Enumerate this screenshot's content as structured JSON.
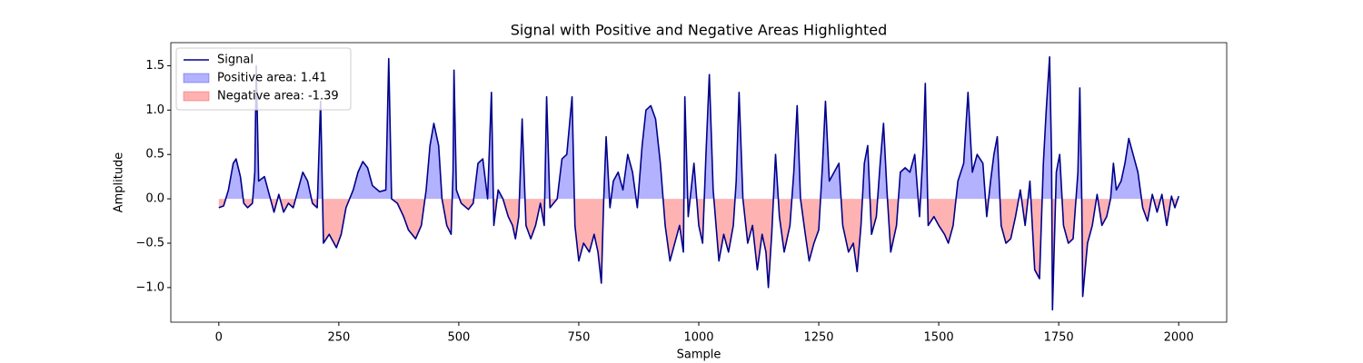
{
  "chart_data": {
    "type": "line",
    "title": "Signal with Positive and Negative Areas Highlighted",
    "x_label": "Sample",
    "y_label": "Amplitude",
    "x": [
      0,
      10,
      20,
      30,
      36,
      45,
      52,
      60,
      70,
      75,
      78,
      83,
      95,
      105,
      115,
      125,
      135,
      145,
      155,
      165,
      175,
      185,
      195,
      205,
      212,
      218,
      230,
      245,
      255,
      265,
      280,
      290,
      300,
      310,
      320,
      335,
      348,
      354,
      360,
      372,
      385,
      395,
      410,
      422,
      432,
      440,
      448,
      458,
      465,
      475,
      484,
      488,
      490,
      495,
      505,
      520,
      530,
      540,
      550,
      560,
      568,
      573,
      582,
      592,
      603,
      612,
      618,
      625,
      632,
      640,
      650,
      660,
      670,
      678,
      683,
      690,
      705,
      715,
      725,
      736,
      742,
      750,
      760,
      772,
      782,
      790,
      797,
      802,
      807,
      815,
      822,
      832,
      842,
      852,
      862,
      872,
      882,
      890,
      900,
      910,
      920,
      930,
      940,
      950,
      960,
      968,
      971,
      978,
      990,
      1000,
      1008,
      1015,
      1022,
      1030,
      1042,
      1052,
      1062,
      1072,
      1078,
      1084,
      1092,
      1102,
      1112,
      1122,
      1132,
      1140,
      1145,
      1152,
      1160,
      1168,
      1178,
      1190,
      1198,
      1205,
      1212,
      1222,
      1230,
      1240,
      1250,
      1258,
      1264,
      1272,
      1282,
      1292,
      1300,
      1312,
      1322,
      1330,
      1338,
      1345,
      1352,
      1360,
      1370,
      1378,
      1385,
      1392,
      1400,
      1412,
      1420,
      1430,
      1440,
      1450,
      1460,
      1468,
      1472,
      1478,
      1490,
      1500,
      1512,
      1520,
      1530,
      1540,
      1552,
      1561,
      1570,
      1580,
      1592,
      1600,
      1608,
      1615,
      1622,
      1630,
      1640,
      1650,
      1660,
      1670,
      1680,
      1690,
      1700,
      1710,
      1718,
      1724,
      1731,
      1735,
      1737,
      1745,
      1752,
      1760,
      1770,
      1780,
      1790,
      1794,
      1798,
      1800,
      1810,
      1820,
      1830,
      1840,
      1850,
      1858,
      1864,
      1870,
      1880,
      1888,
      1896,
      1905,
      1915,
      1925,
      1935,
      1945,
      1955,
      1965,
      1975,
      1985,
      1992,
      2000
    ],
    "series": [
      {
        "name": "Signal",
        "color": "#00008b",
        "values": [
          -0.1,
          -0.08,
          0.1,
          0.4,
          0.45,
          0.25,
          -0.05,
          -0.1,
          -0.05,
          0.3,
          1.5,
          0.2,
          0.25,
          0.05,
          -0.15,
          0.05,
          -0.15,
          -0.05,
          -0.1,
          0.1,
          0.3,
          0.2,
          -0.05,
          -0.1,
          1.1,
          -0.5,
          -0.4,
          -0.55,
          -0.4,
          -0.1,
          0.1,
          0.3,
          0.42,
          0.35,
          0.15,
          0.08,
          0.1,
          1.58,
          0.0,
          -0.05,
          -0.2,
          -0.35,
          -0.45,
          -0.3,
          0.1,
          0.6,
          0.85,
          0.6,
          0.0,
          -0.3,
          -0.4,
          0.3,
          1.45,
          0.1,
          -0.05,
          -0.12,
          -0.05,
          0.4,
          0.45,
          0.0,
          1.2,
          -0.3,
          0.1,
          0.0,
          -0.2,
          -0.3,
          -0.45,
          -0.2,
          0.9,
          -0.3,
          -0.45,
          -0.3,
          -0.05,
          -0.3,
          1.15,
          -0.1,
          0.0,
          0.45,
          0.5,
          1.15,
          -0.3,
          -0.7,
          -0.5,
          -0.6,
          -0.4,
          -0.6,
          -0.95,
          0.0,
          0.7,
          -0.1,
          0.2,
          0.3,
          0.1,
          0.5,
          0.3,
          -0.1,
          0.6,
          1.0,
          1.05,
          0.9,
          0.4,
          -0.3,
          -0.7,
          -0.5,
          -0.3,
          -0.6,
          1.15,
          -0.2,
          0.4,
          -0.3,
          -0.5,
          0.5,
          1.4,
          0.1,
          -0.7,
          -0.4,
          -0.6,
          -0.3,
          0.2,
          1.2,
          0.0,
          -0.5,
          -0.3,
          -0.8,
          -0.4,
          -0.6,
          -1.0,
          -0.4,
          0.5,
          -0.2,
          -0.6,
          -0.3,
          0.3,
          1.05,
          0.0,
          -0.4,
          -0.7,
          -0.5,
          -0.35,
          0.4,
          1.1,
          0.2,
          0.3,
          0.4,
          -0.3,
          -0.6,
          -0.5,
          -0.82,
          -0.3,
          0.4,
          0.6,
          -0.4,
          -0.2,
          0.4,
          0.85,
          0.1,
          -0.6,
          -0.3,
          0.3,
          0.35,
          0.3,
          0.5,
          -0.2,
          0.6,
          1.3,
          -0.3,
          -0.2,
          -0.3,
          -0.4,
          -0.5,
          -0.3,
          0.2,
          0.4,
          1.2,
          0.3,
          0.5,
          0.4,
          -0.2,
          0.2,
          0.5,
          0.7,
          -0.3,
          -0.5,
          -0.45,
          -0.2,
          0.1,
          -0.3,
          0.2,
          -0.8,
          -0.9,
          0.4,
          1.0,
          1.6,
          0.5,
          -1.25,
          0.3,
          0.5,
          -0.3,
          -0.5,
          -0.45,
          0.3,
          1.25,
          0.0,
          -1.1,
          -0.5,
          -0.3,
          0.05,
          -0.3,
          -0.2,
          0.0,
          0.4,
          0.1,
          0.2,
          0.4,
          0.68,
          0.5,
          0.3,
          -0.1,
          -0.25,
          0.05,
          -0.15,
          0.05,
          -0.3,
          0.03,
          -0.1,
          0.03
        ]
      }
    ],
    "fills": [
      {
        "name": "Positive area: 1.41",
        "color": "#0000ff"
      },
      {
        "name": "Negative area: -1.39",
        "color": "#ff0000"
      }
    ],
    "xlim": [
      -100,
      2100
    ],
    "ylim": [
      -1.39,
      1.76
    ],
    "xticks": [
      0,
      250,
      500,
      750,
      1000,
      1250,
      1500,
      1750,
      2000
    ],
    "yticks": [
      {
        "value": -1.0,
        "label": "−1.0"
      },
      {
        "value": -0.5,
        "label": "−0.5"
      },
      {
        "value": 0.0,
        "label": "0.0"
      },
      0.5,
      {
        "value": 1.0,
        "label": "1.0"
      },
      1.5
    ],
    "legend": "upper left"
  }
}
